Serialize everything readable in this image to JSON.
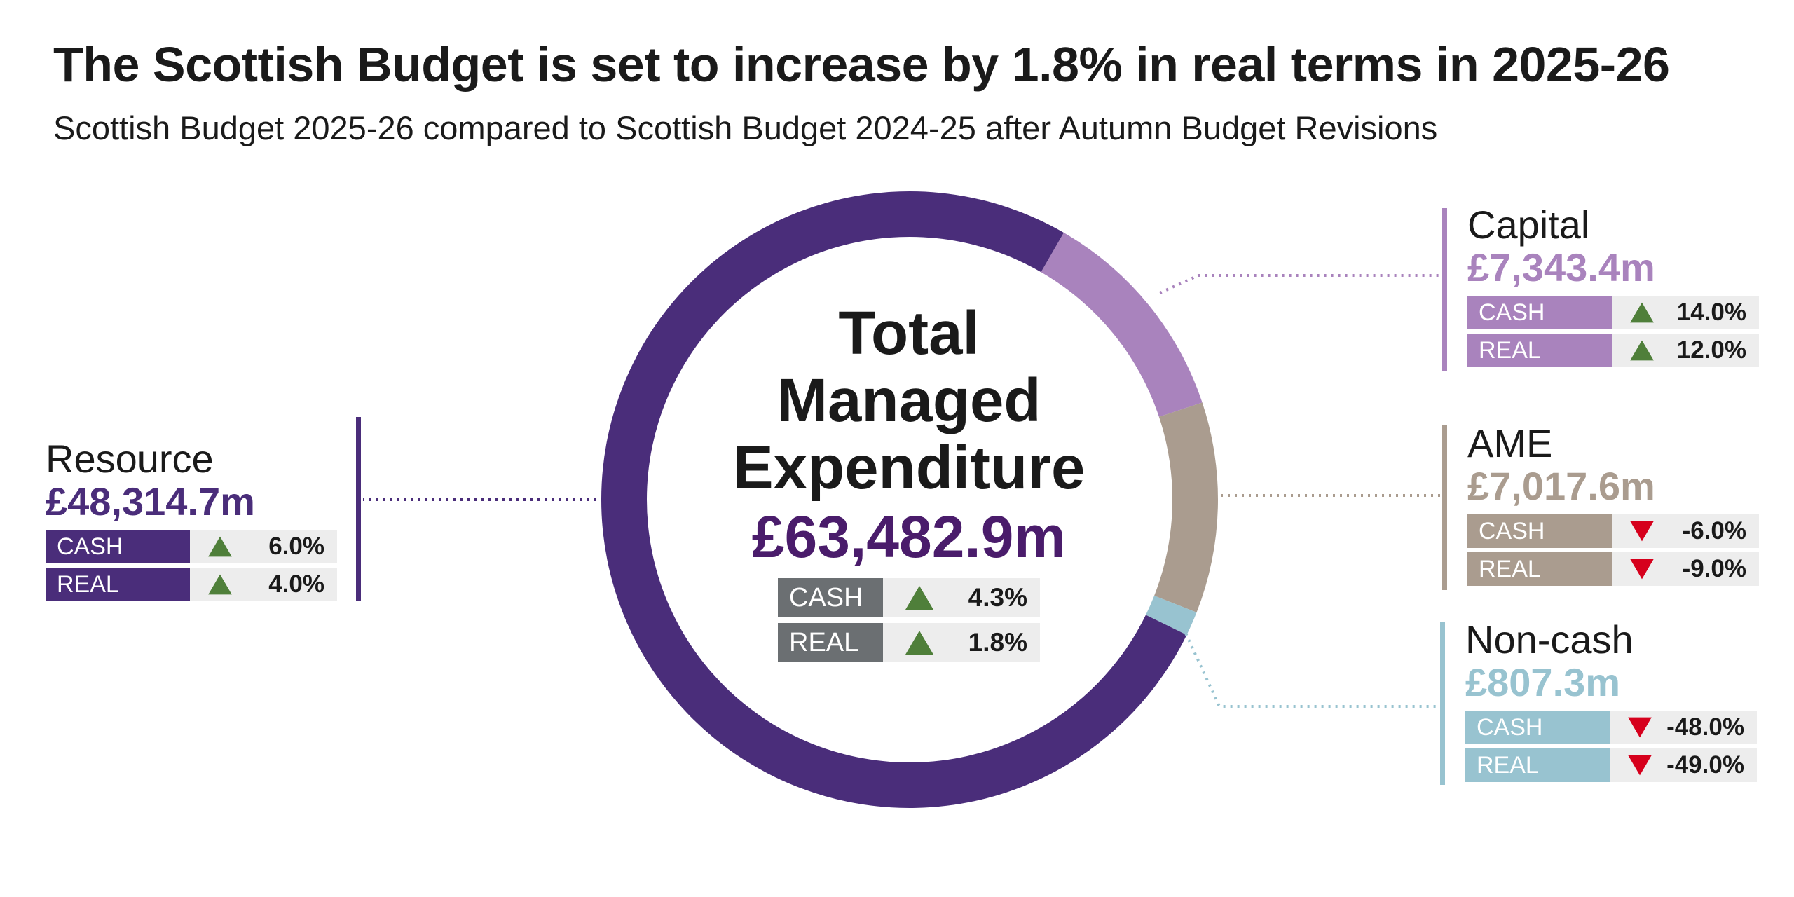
{
  "title": "The Scottish Budget is set to increase by 1.8% in real terms in 2025-26",
  "subtitle": "Scottish Budget 2025-26 compared to Scottish Budget 2024-25 after Autumn Budget Revisions",
  "center": {
    "line1": "Total",
    "line2": "Managed",
    "line3": "Expenditure",
    "value": "£63,482.9m",
    "rows": [
      {
        "label": "CASH",
        "change": "4.3%",
        "direction": "up"
      },
      {
        "label": "REAL",
        "change": "1.8%",
        "direction": "up"
      }
    ]
  },
  "colors": {
    "resource": "#4a2d7a",
    "capital": "#a983bd",
    "ame": "#aa9c8f",
    "noncash": "#98c3d0",
    "center_table": "#6b6f72",
    "center_value": "#4a1c6b",
    "up": "#4f7f3a",
    "down": "#d6001c"
  },
  "chart_data": {
    "type": "pie",
    "style": "donut",
    "total": 63482.9,
    "slices": [
      {
        "name": "Resource",
        "value": 48314.7,
        "color": "#4a2d7a"
      },
      {
        "name": "Capital",
        "value": 7343.4,
        "color": "#a983bd"
      },
      {
        "name": "AME",
        "value": 7017.6,
        "color": "#aa9c8f"
      },
      {
        "name": "Non-cash",
        "value": 807.3,
        "color": "#98c3d0"
      }
    ]
  },
  "panels": {
    "resource": {
      "name": "Resource",
      "value": "£48,314.7m",
      "rows": [
        {
          "label": "CASH",
          "change": "6.0%",
          "direction": "up"
        },
        {
          "label": "REAL",
          "change": "4.0%",
          "direction": "up"
        }
      ]
    },
    "capital": {
      "name": "Capital",
      "value": "£7,343.4m",
      "rows": [
        {
          "label": "CASH",
          "change": "14.0%",
          "direction": "up"
        },
        {
          "label": "REAL",
          "change": "12.0%",
          "direction": "up"
        }
      ]
    },
    "ame": {
      "name": "AME",
      "value": "£7,017.6m",
      "rows": [
        {
          "label": "CASH",
          "change": "-6.0%",
          "direction": "down"
        },
        {
          "label": "REAL",
          "change": "-9.0%",
          "direction": "down"
        }
      ]
    },
    "noncash": {
      "name": "Non-cash",
      "value": "£807.3m",
      "rows": [
        {
          "label": "CASH",
          "change": "-48.0%",
          "direction": "down"
        },
        {
          "label": "REAL",
          "change": "-49.0%",
          "direction": "down"
        }
      ]
    }
  }
}
